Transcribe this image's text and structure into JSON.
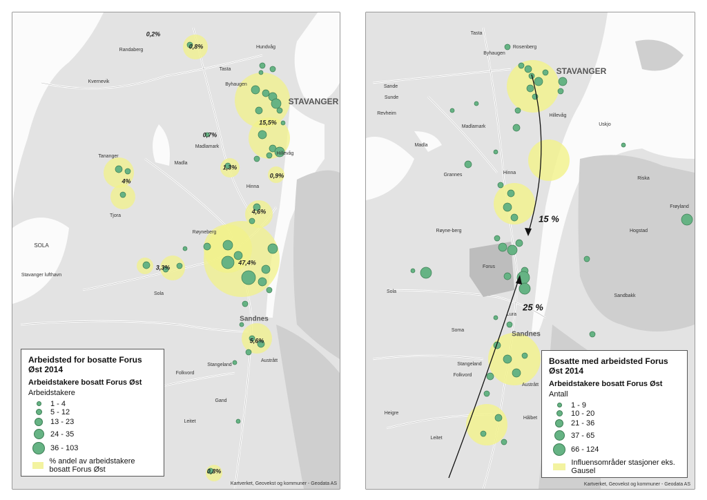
{
  "left_map": {
    "shares": [
      "0,2%",
      "0,8%",
      "15,5%",
      "0,7%",
      "1,3%",
      "0,9%",
      "4%",
      "4,6%",
      "47,4%",
      "3,3%",
      "5,6%",
      "0,8%"
    ],
    "places": [
      "STAVANGER",
      "Randaberg",
      "Hundvåg",
      "Tasta",
      "Byhaugen",
      "Kvernevik",
      "Madlamark",
      "Madla",
      "Hillevåg",
      "Hinna",
      "Tananger",
      "Tjora",
      "SOLA",
      "Stavanger lufthavn",
      "Røyneberg",
      "Sola",
      "Sandnes",
      "Stangeland",
      "Austrått",
      "Gand",
      "Folkvord",
      "Leitet"
    ],
    "legend": {
      "title": "Arbeidsted for bosatte Forus Øst 2014",
      "subtitle": "Arbeidstakere bosatt Forus Øst",
      "size_heading": "Arbeidstakere",
      "classes": [
        "1 - 4",
        "5 - 12",
        "13 - 23",
        "24 - 35",
        "36 - 103"
      ],
      "area_label": "% andel av arbeidstakere bosatt Forus Øst"
    },
    "credit": "Kartverket, Geovekst og kommuner - Geodata AS"
  },
  "right_map": {
    "flows": [
      "15 %",
      "25 %"
    ],
    "places": [
      "STAVANGER",
      "Rosenberg",
      "Tasta",
      "Byhaugen",
      "Sande",
      "Sunde",
      "Revheim",
      "Madlamark",
      "Madla",
      "Hillevåg",
      "Hinna",
      "Grannes",
      "Røyne-berg",
      "Forus",
      "Sola",
      "Lura",
      "Sandnes",
      "Soma",
      "Stangeland",
      "Folkvord",
      "Heigre",
      "Austrått",
      "Hålbet",
      "Leitet",
      "Riska",
      "Frøyland",
      "Hogstad",
      "Sandbakk",
      "Uskjo"
    ],
    "legend": {
      "title": "Bosatte med arbeidsted Forus Øst 2014",
      "subtitle": "Arbeidstakere bosatt Forus Øst",
      "size_heading": "Antall",
      "classes": [
        "1 - 9",
        "10 - 20",
        "21 - 36",
        "37 - 65",
        "66 - 124"
      ],
      "area_label": "Influensområder stasjoner eks. Gausel"
    },
    "credit": "Kartverket, Geovekst og kommuner - Geodata AS"
  }
}
